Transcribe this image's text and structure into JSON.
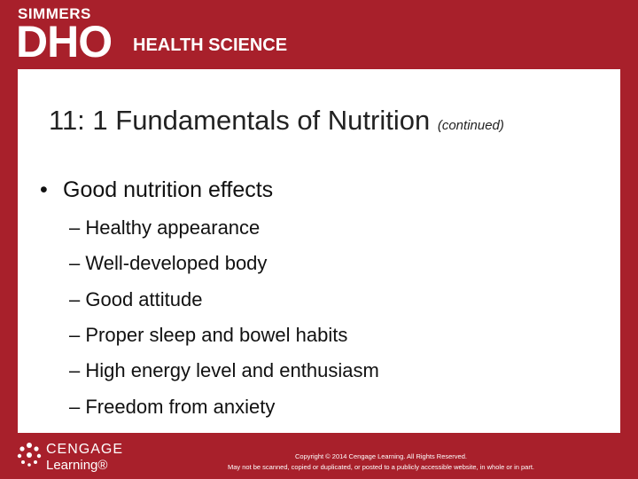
{
  "header": {
    "brand_top": "SIMMERS",
    "brand_main": "DHO",
    "brand_sub": "HEALTH SCIENCE"
  },
  "slide": {
    "title": "11: 1 Fundamentals of Nutrition",
    "title_note": "(continued)",
    "bullet": "Good nutrition effects",
    "sub_bullets": [
      "Healthy appearance",
      "Well-developed body",
      "Good attitude",
      "Proper sleep and bowel habits",
      "High energy level and enthusiasm",
      "Freedom from anxiety"
    ]
  },
  "footer": {
    "publisher_top": "CENGAGE",
    "publisher_bottom": "Learning®",
    "copyright": [
      "Copyright © 2014 Cengage Learning. All Rights Reserved.",
      "May not be scanned, copied or duplicated, or posted to a publicly accessible website, in whole or in part."
    ]
  }
}
